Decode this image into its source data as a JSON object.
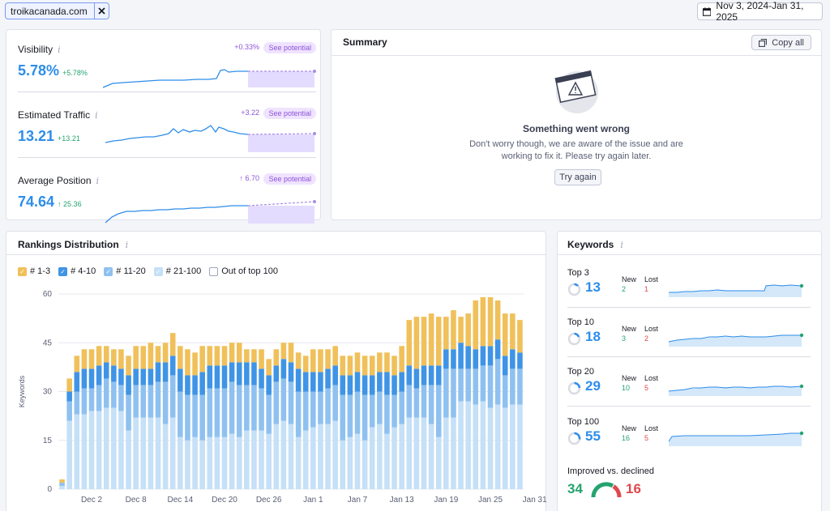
{
  "top": {
    "domain": "troikacanada.com",
    "date_range": "Nov 3, 2024-Jan 31, 2025"
  },
  "metrics": [
    {
      "label": "Visibility",
      "value": "5.78%",
      "change": "+5.78%",
      "delta": "+0.33%",
      "potential": "See potential"
    },
    {
      "label": "Estimated Traffic",
      "value": "13.21",
      "change": "+13.21",
      "delta": "+3.22",
      "potential": "See potential"
    },
    {
      "label": "Average Position",
      "value": "74.64",
      "change": "↑ 25.36",
      "delta": "↑ 6.70",
      "potential": "See potential"
    }
  ],
  "summary": {
    "title": "Summary",
    "copy_label": "Copy all",
    "error_title": "Something went wrong",
    "error_line1": "Don't worry though, we are aware of the issue and are",
    "error_line2": "working to fix it. Please try again later.",
    "retry_label": "Try again"
  },
  "rankings": {
    "title": "Rankings Distribution",
    "legend": [
      {
        "label": "# 1-3",
        "color": "#f0c05a",
        "checked": true
      },
      {
        "label": "# 4-10",
        "color": "#3f94e6",
        "checked": true
      },
      {
        "label": "# 11-20",
        "color": "#8fc1f0",
        "checked": true
      },
      {
        "label": "# 21-100",
        "color": "#c5e0f7",
        "checked": true
      },
      {
        "label": "Out of top 100",
        "color": "#ffffff",
        "checked": false
      }
    ]
  },
  "keywords": {
    "title": "Keywords",
    "new_label": "New",
    "lost_label": "Lost",
    "rows": [
      {
        "label": "Top 3",
        "value": "13",
        "new": "2",
        "lost": "1"
      },
      {
        "label": "Top 10",
        "value": "18",
        "new": "3",
        "lost": "2"
      },
      {
        "label": "Top 20",
        "value": "29",
        "new": "10",
        "lost": "5"
      },
      {
        "label": "Top 100",
        "value": "55",
        "new": "16",
        "lost": "5"
      }
    ],
    "improved_label": "Improved vs. declined",
    "improved": "34",
    "declined": "16"
  },
  "colors": {
    "accent": "#2d8dea",
    "positive": "#25a36f",
    "negative": "#e0484d",
    "potential": "#8e53d8"
  },
  "chart_data": {
    "type": "bar",
    "stacked": true,
    "title": "Rankings Distribution",
    "ylabel": "Keywords",
    "ylim": [
      0,
      60
    ],
    "yticks": [
      0,
      15,
      30,
      45,
      60
    ],
    "xtick_labels": [
      "Dec 2",
      "Dec 8",
      "Dec 14",
      "Dec 20",
      "Dec 26",
      "Jan 1",
      "Jan 7",
      "Jan 13",
      "Jan 19",
      "Jan 25",
      "Jan 31"
    ],
    "series": [
      {
        "name": "# 21-100",
        "color": "#c5e0f7",
        "values": [
          1,
          21,
          23,
          23,
          24,
          24,
          25,
          25,
          24,
          18,
          22,
          22,
          22,
          22,
          20,
          22,
          16,
          15,
          16,
          15,
          16,
          16,
          16,
          17,
          16,
          18,
          18,
          18,
          17,
          20,
          21,
          20,
          16,
          18,
          19,
          20,
          20,
          21,
          15,
          16,
          17,
          15,
          19,
          20,
          17,
          19,
          20,
          22,
          22,
          22,
          20,
          16,
          22,
          22,
          27,
          27,
          26,
          27,
          25,
          26,
          25,
          26,
          26
        ]
      },
      {
        "name": "# 11-20",
        "color": "#8fc1f0",
        "values": [
          1,
          6,
          7,
          8,
          7,
          8,
          9,
          8,
          8,
          11,
          10,
          10,
          10,
          11,
          13,
          13,
          14,
          14,
          13,
          14,
          15,
          15,
          15,
          16,
          16,
          14,
          14,
          13,
          12,
          13,
          13,
          13,
          14,
          12,
          11,
          10,
          11,
          11,
          14,
          13,
          13,
          14,
          10,
          10,
          12,
          10,
          10,
          10,
          9,
          10,
          12,
          16,
          15,
          15,
          10,
          10,
          11,
          11,
          13,
          14,
          10,
          11,
          11
        ]
      },
      {
        "name": "# 4-10",
        "color": "#3f94e6",
        "values": [
          0,
          3,
          6,
          6,
          6,
          6,
          5,
          5,
          5,
          6,
          5,
          5,
          5,
          6,
          6,
          6,
          7,
          6,
          6,
          7,
          7,
          7,
          7,
          6,
          7,
          7,
          7,
          6,
          6,
          5,
          6,
          6,
          7,
          6,
          6,
          6,
          6,
          6,
          6,
          6,
          6,
          6,
          6,
          6,
          7,
          6,
          6,
          6,
          6,
          6,
          6,
          6,
          6,
          6,
          8,
          7,
          6,
          6,
          6,
          6,
          6,
          6,
          5
        ]
      },
      {
        "name": "# 1-3",
        "color": "#f0c05a",
        "values": [
          1,
          4,
          5,
          6,
          6,
          6,
          5,
          5,
          6,
          6,
          7,
          7,
          8,
          5,
          6,
          7,
          7,
          8,
          7,
          8,
          6,
          6,
          6,
          6,
          6,
          4,
          4,
          6,
          5,
          5,
          5,
          6,
          5,
          5,
          7,
          7,
          6,
          6,
          6,
          6,
          6,
          6,
          6,
          6,
          6,
          6,
          8,
          14,
          16,
          15,
          16,
          15,
          10,
          12,
          8,
          10,
          15,
          15,
          15,
          12,
          13,
          11,
          10
        ]
      }
    ]
  }
}
